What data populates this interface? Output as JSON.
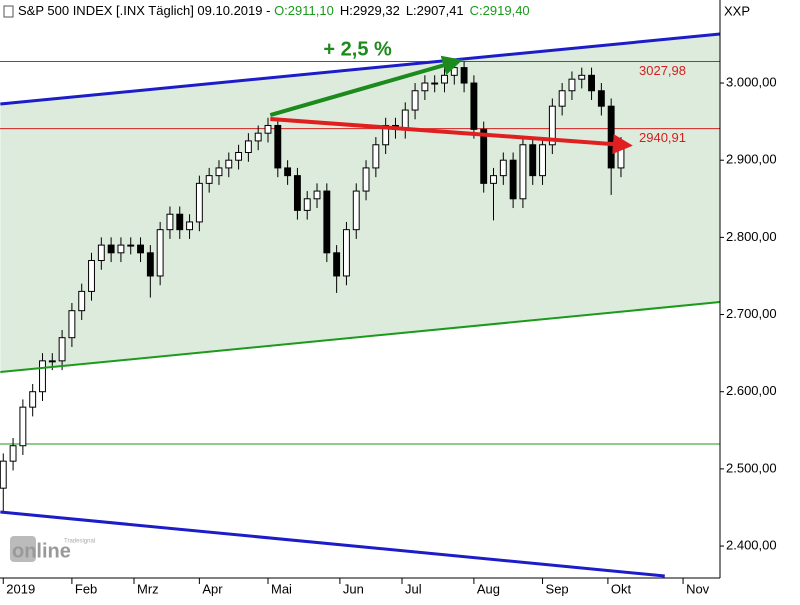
{
  "chart_data": {
    "type": "candlestick",
    "title": "S&P 500 INDEX [.INX  Täglich] 09.10.2019 - ",
    "quote_labels": [
      {
        "text": "O:2911,10",
        "color": "#1a9a1a"
      },
      {
        "text": "H:2929,32",
        "color": "#000000"
      },
      {
        "text": "L:2907,41",
        "color": "#000000"
      },
      {
        "text": "C:2919,40",
        "color": "#1a9a1a"
      }
    ],
    "symbol": "XXP",
    "logo": {
      "small": "Tradesignal",
      "big": "online"
    },
    "up_color": "#ffffff",
    "down_color": "#000000",
    "x": [
      0,
      3,
      6,
      9,
      12,
      15,
      18,
      21,
      24,
      27,
      30,
      33,
      36,
      39,
      42,
      45,
      48,
      51,
      54,
      57,
      60,
      63,
      66,
      69,
      72,
      75,
      78,
      81,
      84,
      87,
      90,
      93,
      96,
      99,
      102,
      105,
      108,
      111,
      114,
      117,
      120,
      123,
      126,
      129,
      132,
      135,
      138,
      141,
      144,
      147,
      150,
      153,
      156,
      159,
      162,
      165,
      168,
      171,
      174,
      177,
      180,
      183,
      186,
      189
    ],
    "open": [
      2475,
      2510,
      2530,
      2580,
      2600,
      2640,
      2640,
      2670,
      2705,
      2730,
      2770,
      2790,
      2780,
      2790,
      2790,
      2780,
      2750,
      2810,
      2830,
      2810,
      2820,
      2870,
      2880,
      2890,
      2900,
      2910,
      2925,
      2935,
      2945,
      2890,
      2880,
      2835,
      2850,
      2860,
      2780,
      2750,
      2810,
      2860,
      2890,
      2920,
      2945,
      2940,
      2965,
      2990,
      3000,
      3000,
      3010,
      3020,
      3000,
      2940,
      2870,
      2880,
      2900,
      2850,
      2920,
      2880,
      2920,
      2970,
      2990,
      3005,
      3010,
      2990,
      2970,
      2890
    ],
    "high": [
      2520,
      2540,
      2590,
      2610,
      2650,
      2650,
      2680,
      2715,
      2740,
      2780,
      2800,
      2800,
      2800,
      2800,
      2800,
      2790,
      2820,
      2840,
      2840,
      2830,
      2880,
      2890,
      2900,
      2910,
      2920,
      2935,
      2945,
      2955,
      2955,
      2900,
      2890,
      2860,
      2870,
      2870,
      2790,
      2820,
      2870,
      2900,
      2930,
      2955,
      2955,
      2975,
      3000,
      3010,
      3010,
      3020,
      3030,
      3028,
      3010,
      2950,
      2890,
      2910,
      2910,
      2930,
      2930,
      2930,
      2980,
      3000,
      3015,
      3020,
      3020,
      3000,
      2980,
      2930
    ],
    "low": [
      2444,
      2498,
      2518,
      2568,
      2588,
      2628,
      2628,
      2658,
      2693,
      2718,
      2758,
      2768,
      2768,
      2778,
      2768,
      2722,
      2738,
      2798,
      2798,
      2798,
      2808,
      2858,
      2868,
      2878,
      2888,
      2898,
      2913,
      2923,
      2878,
      2868,
      2823,
      2823,
      2838,
      2768,
      2728,
      2738,
      2798,
      2848,
      2878,
      2908,
      2928,
      2928,
      2953,
      2978,
      2988,
      2988,
      2998,
      2988,
      2928,
      2858,
      2822,
      2868,
      2838,
      2838,
      2868,
      2868,
      2908,
      2958,
      2978,
      2993,
      2978,
      2958,
      2855,
      2878
    ],
    "close": [
      2510,
      2530,
      2580,
      2600,
      2640,
      2640,
      2670,
      2705,
      2730,
      2770,
      2790,
      2780,
      2790,
      2790,
      2780,
      2750,
      2810,
      2830,
      2810,
      2820,
      2870,
      2880,
      2890,
      2900,
      2910,
      2925,
      2935,
      2945,
      2890,
      2880,
      2835,
      2850,
      2860,
      2780,
      2750,
      2810,
      2860,
      2890,
      2920,
      2945,
      2940,
      2965,
      2990,
      3000,
      3000,
      3010,
      3020,
      3000,
      2940,
      2870,
      2880,
      2900,
      2850,
      2920,
      2880,
      2920,
      2970,
      2990,
      3005,
      3010,
      2990,
      2970,
      2890,
      2920
    ],
    "xlim": [
      -1,
      219.3
    ],
    "ylim": [
      2358.6,
      3107.6
    ],
    "xticks": [
      {
        "value": 0,
        "label": "2019"
      },
      {
        "value": 21,
        "label": "Feb"
      },
      {
        "value": 40,
        "label": "Mrz"
      },
      {
        "value": 60,
        "label": "Apr"
      },
      {
        "value": 81,
        "label": "Mai"
      },
      {
        "value": 103,
        "label": "Jun"
      },
      {
        "value": 122,
        "label": "Jul"
      },
      {
        "value": 144,
        "label": "Aug"
      },
      {
        "value": 165,
        "label": "Sep"
      },
      {
        "value": 185,
        "label": "Okt"
      },
      {
        "value": 208,
        "label": "Nov"
      }
    ],
    "yticks": [
      {
        "value": 2400,
        "label": "2.400,00"
      },
      {
        "value": 2500,
        "label": "2.500,00"
      },
      {
        "value": 2600,
        "label": "2.600,00"
      },
      {
        "value": 2700,
        "label": "2.700,00"
      },
      {
        "value": 2800,
        "label": "2.800,00"
      },
      {
        "value": 2900,
        "label": "2.900,00"
      },
      {
        "value": 3000,
        "label": "3.000,00"
      }
    ],
    "channel": {
      "upper": [
        [
          -0.9,
          2972.8
        ],
        [
          219.3,
          3063.5
        ]
      ],
      "lower": [
        [
          -0.9,
          2625.5
        ],
        [
          219.3,
          2716.2
        ]
      ],
      "fill": "#dcebdc"
    },
    "trendlines": [
      {
        "color": "#1c1cc8",
        "width": 3,
        "points": [
          [
            -0.9,
            2972.8
          ],
          [
            219.3,
            3063.5
          ]
        ]
      },
      {
        "color": "#1c9a1c",
        "width": 2,
        "points": [
          [
            -0.9,
            2625.5
          ],
          [
            219.3,
            2716.2
          ]
        ]
      },
      {
        "color": "#1c1cc8",
        "width": 3,
        "points": [
          [
            -0.9,
            2444.1
          ],
          [
            202.4,
            2361.2
          ]
        ]
      }
    ],
    "hlines": [
      {
        "value": 3027.98,
        "label": "3027,98",
        "color": "#d42020"
      },
      {
        "value": 2940.91,
        "label": "2940,91",
        "color": "#d42020"
      },
      {
        "value": 2532.2,
        "color": "#1c9a1c"
      }
    ],
    "arrows": [
      {
        "color": "#1c8a1c",
        "points": [
          [
            81.7,
            2958.5
          ],
          [
            138.2,
            3027.2
          ]
        ],
        "label": "+ 2,5 %"
      },
      {
        "color": "#e02020",
        "points": [
          [
            81.7,
            2953.4
          ],
          [
            190.2,
            2919.7
          ]
        ]
      }
    ]
  }
}
